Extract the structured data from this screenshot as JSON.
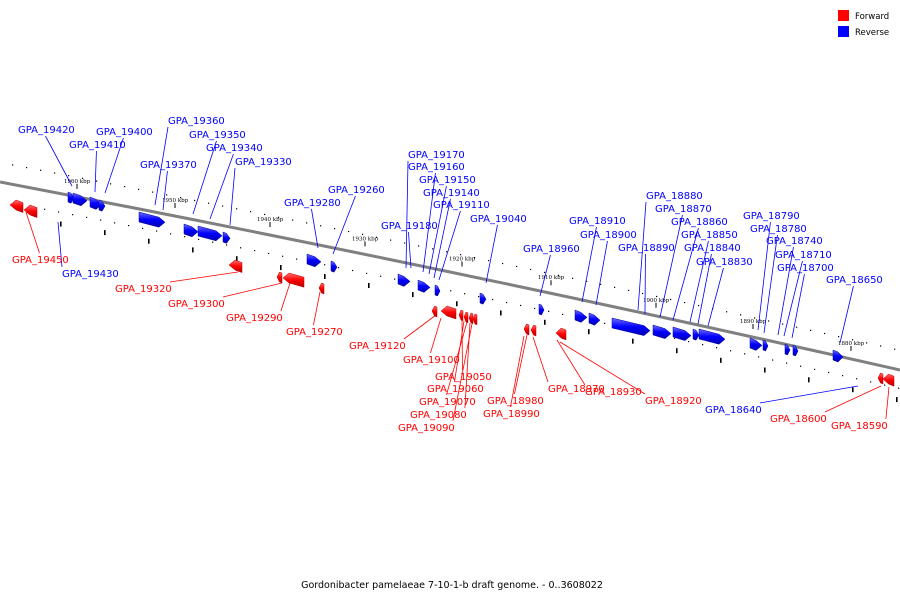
{
  "caption": "Gordonibacter pamelaeae 7-10-1-b draft genome. - 0..3608022",
  "legend": [
    {
      "label": "Forward",
      "color": "#ff0000"
    },
    {
      "label": "Reverse",
      "color": "#0000ff"
    }
  ],
  "kbp_labels": [
    "1960 kbp",
    "1950 kbp",
    "1940 kbp",
    "1930 kbp",
    "1920 kbp",
    "1910 kbp",
    "1900 kbp",
    "1890 kbp",
    "1880 kbp"
  ],
  "genes": [
    {
      "id": "GPA_19420",
      "strand": "reverse"
    },
    {
      "id": "GPA_19410",
      "strand": "reverse"
    },
    {
      "id": "GPA_19400",
      "strand": "reverse"
    },
    {
      "id": "GPA_19360",
      "strand": "reverse"
    },
    {
      "id": "GPA_19350",
      "strand": "reverse"
    },
    {
      "id": "GPA_19340",
      "strand": "reverse"
    },
    {
      "id": "GPA_19370",
      "strand": "reverse"
    },
    {
      "id": "GPA_19330",
      "strand": "reverse"
    },
    {
      "id": "GPA_19280",
      "strand": "reverse"
    },
    {
      "id": "GPA_19260",
      "strand": "reverse"
    },
    {
      "id": "GPA_19170",
      "strand": "reverse"
    },
    {
      "id": "GPA_19160",
      "strand": "reverse"
    },
    {
      "id": "GPA_19150",
      "strand": "reverse"
    },
    {
      "id": "GPA_19140",
      "strand": "reverse"
    },
    {
      "id": "GPA_19110",
      "strand": "reverse"
    },
    {
      "id": "GPA_19180",
      "strand": "reverse"
    },
    {
      "id": "GPA_19040",
      "strand": "reverse"
    },
    {
      "id": "GPA_18960",
      "strand": "reverse"
    },
    {
      "id": "GPA_18910",
      "strand": "reverse"
    },
    {
      "id": "GPA_18900",
      "strand": "reverse"
    },
    {
      "id": "GPA_18880",
      "strand": "reverse"
    },
    {
      "id": "GPA_18870",
      "strand": "reverse"
    },
    {
      "id": "GPA_18860",
      "strand": "reverse"
    },
    {
      "id": "GPA_18890",
      "strand": "reverse"
    },
    {
      "id": "GPA_18850",
      "strand": "reverse"
    },
    {
      "id": "GPA_18840",
      "strand": "reverse"
    },
    {
      "id": "GPA_18830",
      "strand": "reverse"
    },
    {
      "id": "GPA_18790",
      "strand": "reverse"
    },
    {
      "id": "GPA_18780",
      "strand": "reverse"
    },
    {
      "id": "GPA_18740",
      "strand": "reverse"
    },
    {
      "id": "GPA_18710",
      "strand": "reverse"
    },
    {
      "id": "GPA_18700",
      "strand": "reverse"
    },
    {
      "id": "GPA_18650",
      "strand": "reverse"
    },
    {
      "id": "GPA_19430",
      "strand": "reverse"
    },
    {
      "id": "GPA_18640",
      "strand": "reverse"
    },
    {
      "id": "GPA_19450",
      "strand": "forward"
    },
    {
      "id": "GPA_19320",
      "strand": "forward"
    },
    {
      "id": "GPA_19300",
      "strand": "forward"
    },
    {
      "id": "GPA_19290",
      "strand": "forward"
    },
    {
      "id": "GPA_19270",
      "strand": "forward"
    },
    {
      "id": "GPA_19120",
      "strand": "forward"
    },
    {
      "id": "GPA_19100",
      "strand": "forward"
    },
    {
      "id": "GPA_19050",
      "strand": "forward"
    },
    {
      "id": "GPA_19060",
      "strand": "forward"
    },
    {
      "id": "GPA_19070",
      "strand": "forward"
    },
    {
      "id": "GPA_19080",
      "strand": "forward"
    },
    {
      "id": "GPA_19090",
      "strand": "forward"
    },
    {
      "id": "GPA_18980",
      "strand": "forward"
    },
    {
      "id": "GPA_18990",
      "strand": "forward"
    },
    {
      "id": "GPA_18970",
      "strand": "forward"
    },
    {
      "id": "GPA_18930",
      "strand": "forward"
    },
    {
      "id": "GPA_18920",
      "strand": "forward"
    },
    {
      "id": "GPA_18600",
      "strand": "forward"
    },
    {
      "id": "GPA_18590",
      "strand": "forward"
    }
  ]
}
